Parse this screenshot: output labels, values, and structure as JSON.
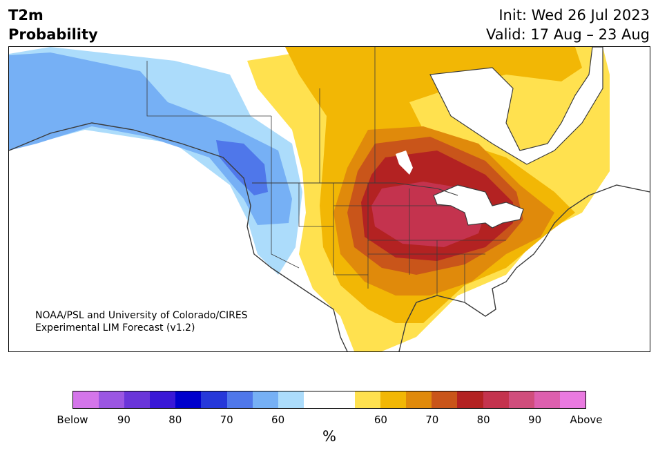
{
  "header": {
    "variable": "T2m",
    "kind": "Probability",
    "init": "Init: Wed 26 Jul 2023",
    "valid": "Valid: 17 Aug – 23 Aug"
  },
  "map": {
    "credit_line1": "NOAA/PSL and University of Colorado/CIRES",
    "credit_line2": "Experimental LIM Forecast (v1.2)",
    "region": "North America",
    "border_color": "#3a3a3a"
  },
  "legend": {
    "unit": "%",
    "colors": [
      "#d475ea",
      "#9b56e2",
      "#6a35d9",
      "#3a18d6",
      "#0000cc",
      "#2638d9",
      "#4f77ea",
      "#76b0f5",
      "#acdcfb",
      "#ffffff",
      "#ffffff",
      "#ffe14f",
      "#f2b705",
      "#e08a0b",
      "#c9551a",
      "#b32222",
      "#c4334e",
      "#d04d7c",
      "#dd5fae",
      "#e97ae0"
    ],
    "tick_labels": [
      "Below",
      "90",
      "80",
      "70",
      "60",
      "60",
      "70",
      "80",
      "90",
      "Above"
    ]
  },
  "colors": {
    "below_60": "#acdcfb",
    "below_70": "#76b0f5",
    "below_80": "#4f77ea",
    "above_60": "#ffe14f",
    "above_70": "#f2b705",
    "above_75": "#e08a0b",
    "above_80": "#c9551a",
    "above_85": "#b32222",
    "above_90": "#c4334e"
  }
}
